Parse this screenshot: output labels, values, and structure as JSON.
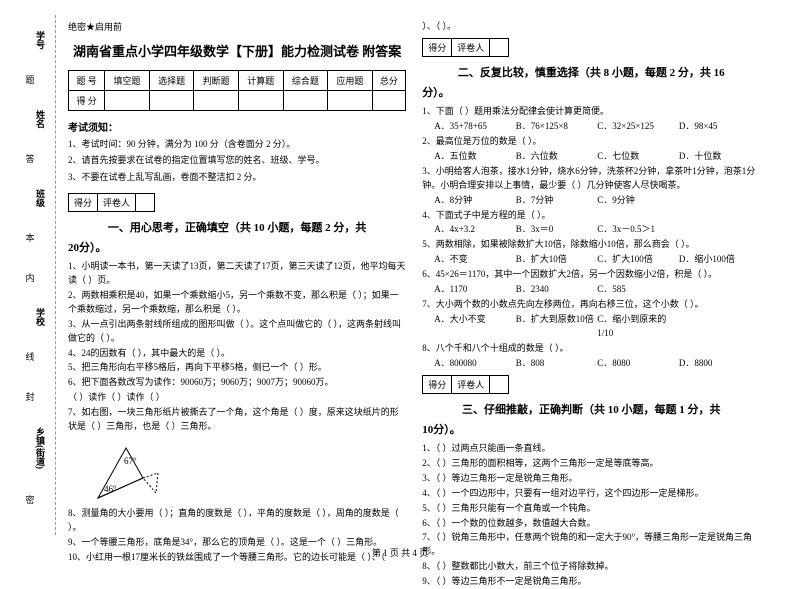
{
  "side": {
    "items": [
      {
        "label": "学号",
        "char": "题"
      },
      {
        "label": "姓名",
        "char": "答"
      },
      {
        "label": "班级",
        "char": "本"
      },
      {
        "label": "学校",
        "char": "内"
      },
      {
        "label": "",
        "char": "线"
      },
      {
        "label": "",
        "char": "封"
      },
      {
        "label": "乡镇(街道)",
        "char": "密"
      }
    ]
  },
  "badge": "绝密★启用前",
  "title": "湖南省重点小学四年级数学【下册】能力检测试卷 附答案",
  "scoreTable": {
    "headers": [
      "题  号",
      "填空题",
      "选择题",
      "判断题",
      "计算题",
      "综合题",
      "应用题",
      "总分"
    ],
    "row": [
      "得  分",
      "",
      "",
      "",
      "",
      "",
      "",
      ""
    ]
  },
  "noticeTitle": "考试须知：",
  "notices": [
    "1、考试时间：90 分钟，满分为 100 分（含卷面分 2 分）。",
    "2、请首先按要求在试卷的指定位置填写您的姓名、班级、学号。",
    "3、不要在试卷上乱写乱画，卷面不整洁扣 2 分。"
  ],
  "evalLabels": [
    "得分",
    "评卷人"
  ],
  "sec1": {
    "t": "一、用心思考，正确填空（共 10 小题，每题 2 分，共",
    "s": "20分）。"
  },
  "q1": [
    "1、小明读一本书，第一天读了13页，第二天读了17页，第三天读了12页，他平均每天读（       ）页。",
    "2、两数相乘积是40，如果一个乘数缩小5，另一个乘数不变，那么积是（       ）；如果一个乘数缩过，另一个乘数缩，那么积是（       ）。",
    "3、从一点引出两条射线所组成的图形叫做（       ）。这个点叫做它的（       ），这两条射线叫做它的（       ）。",
    "4、24的因数有（       ），其中最大的是（       ）。",
    "5、把三角形向右平移5格后，再向下平移5格，侧已一个（       ）形。",
    "6、把下面各数改写为读作：90060万；9060万；9007万；90060万。",
    "（       ）读作（       ）读作（       ）",
    "7、如右图，一块三角形纸片被撕去了一个角，这个角是（       ）度，原来这块纸片的形状是（       ）三角形，也是（       ）三角形。"
  ],
  "diagram": {
    "angle1": "67°",
    "angle2": "46°"
  },
  "q1b": [
    "8、测量角的大小要用（       ）；直角的度数是（       ），平角的度数是（       ），周角的度数是（       ）。",
    "9、一个等腰三角形，底角是34°，那么它的顶角是（       ）。这是一个（       ）三角形。",
    "10、小红用一根17厘米长的铁丝围成了一个等腰三角形。它的边长可能是（       ）、（    "
  ],
  "q1c": "）、（       ）。",
  "sec2": {
    "t": "二、反复比较，慎重选择（共 8 小题，每题 2 分，共 16",
    "s": "分）。"
  },
  "q2": [
    "1、下面（       ）题用乘法分配律会使计算更简便。",
    {
      "opts": [
        "A．35+78+65",
        "B．76×125×8",
        "C．32×25×125",
        "D．98×45"
      ]
    },
    "2、最高位是万位的数是（       ）。",
    {
      "opts": [
        "A．五位数",
        "B．六位数",
        "C．七位数",
        "D．十位数"
      ]
    },
    "3、小明给客人泡茶，接水1分钟，烧水6分钟，洗茶杯2分钟，拿茶叶1分钟，泡茶1分钟。小明合理安排以上事情，最少要（       ）几分钟使客人尽快喝茶。",
    {
      "opts": [
        "A．8分钟",
        "B．7分钟",
        "C．9分钟",
        ""
      ]
    },
    "4、下面式子中是方程的是（       ）。",
    {
      "opts": [
        "A．4x+3.2",
        "B．3x＝0",
        "C．3x－0.5＞1",
        ""
      ]
    },
    "5、两数相除，如果被除数扩大10倍，除数缩小10倍，那么商会（       ）。",
    {
      "opts": [
        "A．不变",
        "B．扩大10倍",
        "C．扩大100倍",
        "D．缩小100倍"
      ]
    },
    "6、45×26＝1170，其中一个因数扩大2倍，另一个因数缩小2倍，积是（       ）。",
    {
      "opts": [
        "A．1170",
        "B．2340",
        "C．585",
        ""
      ]
    },
    "7、大小两个数的小数点先向左移两位，再向右移三位，这个小数（       ）。",
    {
      "opts": [
        "A．大小不变",
        "B．扩大到原数10倍",
        "C．缩小到原来的1/10",
        ""
      ]
    },
    "8、八个千和八个十组成的数是（       ）。",
    {
      "opts": [
        "A．800080",
        "B．808",
        "C．8080",
        "D．8800"
      ]
    }
  ],
  "sec3": {
    "t": "三、仔细推敲，正确判断（共 10 小题，每题 1 分，共",
    "s": "10分）。"
  },
  "q3": [
    "1、（       ）过两点只能画一条直线。",
    "2、（       ）三角形的面积相等，这两个三角形一定是等底等高。",
    "3、（       ）等边三角形一定是锐角三角形。",
    "4、（       ）一个四边形中，只要有一组对边平行，这个四边形一定是梯形。",
    "5、（       ）三角形只能有一个直角或一个钝角。",
    "6、（       ）一个数的位数越多，数值越大合数。",
    "7、（       ）锐角三角形中，任意两个锐角的和一定大于90°，等腰三角形一定是锐角三角形。",
    "8、（       ）整数都比小数大，前三个位子将除数掉。",
    "9、（       ）等边三角形不一定是锐角三角形。"
  ],
  "footer": "第 1 页 共 4 页"
}
